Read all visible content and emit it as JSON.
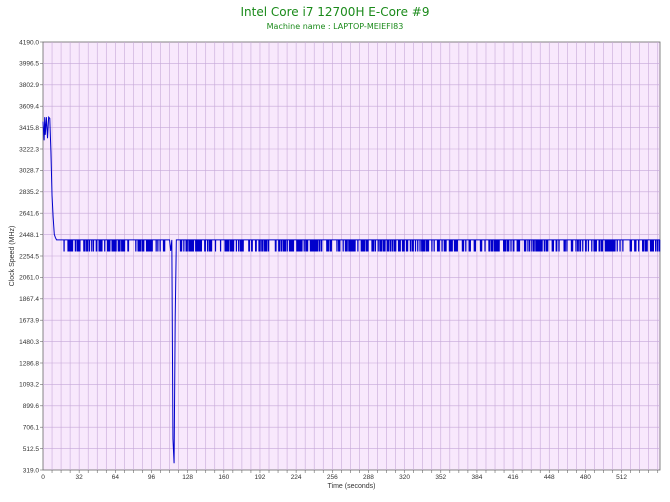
{
  "chart_data": {
    "type": "line",
    "title": "Intel Core i7 12700H E-Core #9",
    "subtitle": "Machine name : LAPTOP-MEIEFI83",
    "xlabel": "Time (seconds)",
    "ylabel": "Clock Speed (MHz)",
    "xlim": [
      0,
      546
    ],
    "ylim": [
      319.0,
      4190.0
    ],
    "grid": true,
    "x_ticks": [
      "0",
      "32",
      "64",
      "96",
      "128",
      "160",
      "192",
      "224",
      "256",
      "288",
      "320",
      "352",
      "384",
      "416",
      "448",
      "480",
      "512"
    ],
    "y_ticks": [
      "4190.0",
      "3996.5",
      "3802.9",
      "3609.4",
      "3415.8",
      "3222.3",
      "3028.7",
      "2835.2",
      "2641.6",
      "2448.1",
      "2254.5",
      "2061.0",
      "1867.4",
      "1673.9",
      "1480.3",
      "1286.8",
      "1093.2",
      "899.6",
      "706.1",
      "512.5",
      "319.0"
    ],
    "series": [
      {
        "color": "#0000cc",
        "baseline": 2400,
        "dip": 2300,
        "points": [
          [
            0,
            3470
          ],
          [
            1,
            3300
          ],
          [
            1.5,
            3510
          ],
          [
            2,
            3350
          ],
          [
            3,
            3510
          ],
          [
            4,
            3320
          ],
          [
            5,
            3510
          ],
          [
            6,
            3500
          ],
          [
            7,
            3200
          ],
          [
            8,
            2800
          ],
          [
            9,
            2600
          ],
          [
            10,
            2450
          ],
          [
            11,
            2420
          ],
          [
            12,
            2400
          ],
          [
            15,
            2400
          ],
          [
            18,
            2400
          ],
          [
            110,
            2400
          ],
          [
            112,
            2400
          ],
          [
            113,
            2300
          ],
          [
            114,
            2400
          ],
          [
            115,
            600
          ],
          [
            116,
            380
          ],
          [
            117,
            1700
          ],
          [
            118,
            2400
          ],
          [
            120,
            2400
          ],
          [
            546,
            2400
          ]
        ]
      }
    ]
  }
}
